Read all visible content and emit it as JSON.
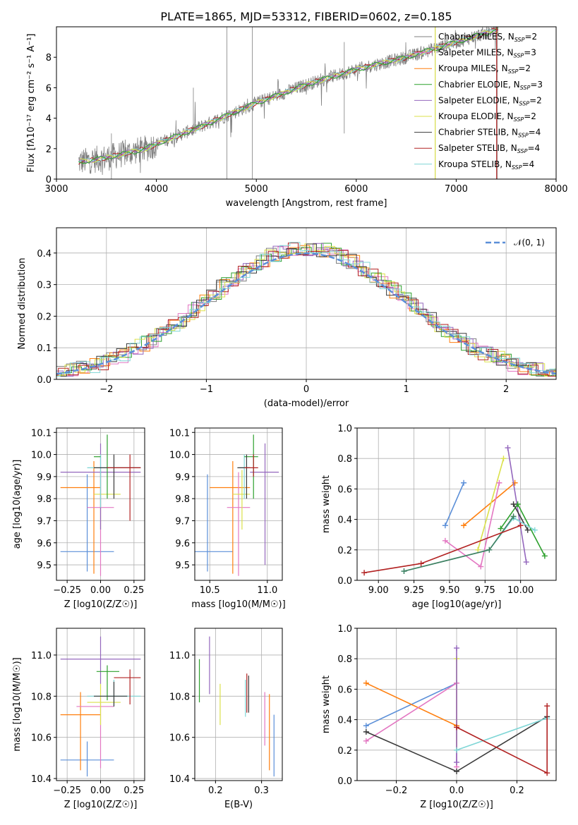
{
  "title": "PLATE=1865, MJD=53312, FIBERID=0602, z=0.185",
  "colors": {
    "Chabrier MILES": "#7f7f7f",
    "Salpeter MILES": "#e377c2",
    "Kroupa MILES": "#ff7f0e",
    "Chabrier ELODIE": "#2ca02c",
    "Salpeter ELODIE": "#9467bd",
    "Kroupa ELODIE": "#dbe14a",
    "Chabrier STELIB": "#3a3a3a",
    "Salpeter STELIB": "#b22222",
    "Kroupa STELIB": "#7fd6d6",
    "blue": "#5b8fd8",
    "darkgreen": "#3f7f5f"
  },
  "chart_data": [
    {
      "id": "spectrum",
      "type": "line",
      "xlabel": "wavelength [Angstrom, rest frame]",
      "ylabel": "Flux [f$_\\lambda$10$^{-17}$ erg cm$^{-2}$ s$^{-1}$ A$^{-1}$]",
      "xlim": [
        3000,
        8000
      ],
      "ylim": [
        0,
        10
      ],
      "xticks": [
        3000,
        4000,
        5000,
        6000,
        7000,
        8000
      ],
      "yticks": [
        0,
        2,
        4,
        6,
        8
      ],
      "legend": [
        {
          "label": "Chabrier MILES, N",
          "sub": "SSP",
          "suffix": "=2",
          "color": "#7f7f7f"
        },
        {
          "label": "Salpeter MILES, N",
          "sub": "SSP",
          "suffix": "=3",
          "color": "#e377c2"
        },
        {
          "label": "Kroupa MILES, N",
          "sub": "SSP",
          "suffix": "=2",
          "color": "#ff7f0e"
        },
        {
          "label": "Chabrier ELODIE, N",
          "sub": "SSP",
          "suffix": "=3",
          "color": "#2ca02c"
        },
        {
          "label": "Salpeter ELODIE, N",
          "sub": "SSP",
          "suffix": "=2",
          "color": "#9467bd"
        },
        {
          "label": "Kroupa ELODIE, N",
          "sub": "SSP",
          "suffix": "=2",
          "color": "#dbe14a"
        },
        {
          "label": "Chabrier STELIB, N",
          "sub": "SSP",
          "suffix": "=4",
          "color": "#3a3a3a"
        },
        {
          "label": "Salpeter STELIB, N",
          "sub": "SSP",
          "suffix": "=4",
          "color": "#b22222"
        },
        {
          "label": "Kroupa STELIB, N",
          "sub": "SSP",
          "suffix": "=4",
          "color": "#7fd6d6"
        }
      ],
      "legend_position": "top-right",
      "data_trend": {
        "x": [
          3200,
          3500,
          3900,
          4000,
          4500,
          5000,
          5500,
          6000,
          6500,
          7000,
          7400
        ],
        "y": [
          1.1,
          1.4,
          2.0,
          2.3,
          3.6,
          5.0,
          6.2,
          7.2,
          8.0,
          9.0,
          9.8
        ]
      },
      "grid": false
    },
    {
      "id": "residuals",
      "type": "step",
      "xlabel": "(data-model)/error",
      "ylabel": "Normed distribution",
      "xlim": [
        -2.5,
        2.5
      ],
      "ylim": [
        0,
        0.48
      ],
      "xticks": [
        -2,
        -1,
        0,
        1,
        2
      ],
      "yticks": [
        0.0,
        0.1,
        0.2,
        0.3,
        0.4
      ],
      "legend": [
        {
          "label": "N(0, 1)",
          "color": "#5b8fd8",
          "style": "dashed"
        }
      ],
      "legend_position": "top-right",
      "grid": true
    },
    {
      "id": "Z_age",
      "type": "errorbar",
      "xlabel": "Z [log10(Z/Z☉)]",
      "ylabel": "age  [log10(age/yr)]",
      "xlim": [
        -0.33,
        0.33
      ],
      "ylim": [
        9.43,
        10.12
      ],
      "xticks": [
        -0.25,
        0.0,
        0.25
      ],
      "yticks": [
        9.5,
        9.6,
        9.7,
        9.8,
        9.9,
        10.0,
        10.1
      ],
      "grid": true
    },
    {
      "id": "mass_age",
      "type": "errorbar",
      "xlabel": "mass [log10(M/M☉)]",
      "xlim": [
        10.37,
        11.13
      ],
      "ylim": [
        9.43,
        10.12
      ],
      "xticks": [
        10.5,
        11.0
      ],
      "yticks": [
        9.5,
        9.6,
        9.7,
        9.8,
        9.9,
        10.0,
        10.1
      ],
      "grid": true
    },
    {
      "id": "age_weight",
      "type": "line",
      "xlabel": "age  [log10(age/yr)]",
      "ylabel": "mass weight",
      "xlim": [
        8.85,
        10.25
      ],
      "ylim": [
        0,
        1.0
      ],
      "xticks": [
        9.0,
        9.25,
        9.5,
        9.75,
        10.0
      ],
      "yticks": [
        0.0,
        0.2,
        0.4,
        0.6,
        0.8,
        1.0
      ],
      "grid": true,
      "series": [
        {
          "color": "#5b8fd8",
          "x": [
            9.47,
            9.6
          ],
          "y": [
            0.36,
            0.64
          ]
        },
        {
          "color": "#ff7f0e",
          "x": [
            9.6,
            9.96
          ],
          "y": [
            0.36,
            0.64
          ]
        },
        {
          "color": "#dbe14a",
          "x": [
            9.7,
            9.88
          ],
          "y": [
            0.2,
            0.8
          ]
        },
        {
          "color": "#e377c2",
          "x": [
            9.47,
            9.72,
            9.85
          ],
          "y": [
            0.26,
            0.09,
            0.64
          ]
        },
        {
          "color": "#9467bd",
          "x": [
            9.91,
            10.04
          ],
          "y": [
            0.87,
            0.12
          ]
        },
        {
          "color": "#2ca02c",
          "x": [
            9.86,
            9.98,
            10.17
          ],
          "y": [
            0.34,
            0.5,
            0.16
          ]
        },
        {
          "color": "#3a3a3a",
          "x": [
            9.95,
            10.05
          ],
          "y": [
            0.5,
            0.33
          ]
        },
        {
          "color": "#7fd6d6",
          "x": [
            9.18,
            9.78,
            9.95,
            10.1
          ],
          "y": [
            0.06,
            0.2,
            0.41,
            0.33
          ]
        },
        {
          "color": "#3f7f5f",
          "x": [
            9.18,
            9.78,
            9.95
          ],
          "y": [
            0.06,
            0.2,
            0.42
          ]
        },
        {
          "color": "#b22222",
          "x": [
            8.9,
            9.3,
            10.0
          ],
          "y": [
            0.05,
            0.11,
            0.36
          ]
        }
      ]
    },
    {
      "id": "Z_mass",
      "type": "errorbar",
      "xlabel": "Z [log10(Z/Z☉)]",
      "ylabel": "mass [log10(M/M☉)]",
      "xlim": [
        -0.33,
        0.33
      ],
      "ylim": [
        10.39,
        11.13
      ],
      "xticks": [
        -0.25,
        0.0,
        0.25
      ],
      "yticks": [
        10.4,
        10.6,
        10.8,
        11.0
      ],
      "grid": true
    },
    {
      "id": "ebv_mass",
      "type": "errorbar",
      "xlabel": "E(B-V)",
      "xlim": [
        0.155,
        0.345
      ],
      "ylim": [
        10.39,
        11.13
      ],
      "xticks": [
        0.2,
        0.3
      ],
      "yticks": [
        10.4,
        10.6,
        10.8,
        11.0
      ],
      "grid": true
    },
    {
      "id": "Z_weight",
      "type": "line",
      "xlabel": "Z [log10(Z/Z☉)]",
      "ylabel": "mass weight",
      "xlim": [
        -0.33,
        0.33
      ],
      "ylim": [
        0,
        1.0
      ],
      "xticks": [
        -0.2,
        0.0,
        0.2
      ],
      "yticks": [
        0.0,
        0.2,
        0.4,
        0.6,
        0.8,
        1.0
      ],
      "grid": true,
      "series": [
        {
          "color": "#5b8fd8",
          "x": [
            -0.3,
            0.0
          ],
          "y": [
            0.36,
            0.64
          ]
        },
        {
          "color": "#ff7f0e",
          "x": [
            -0.3,
            0.0
          ],
          "y": [
            0.64,
            0.36
          ]
        },
        {
          "color": "#e377c2",
          "x": [
            -0.3,
            0.0,
            0.0
          ],
          "y": [
            0.26,
            0.64,
            0.09
          ]
        },
        {
          "color": "#dbe14a",
          "x": [
            0.0,
            0.0
          ],
          "y": [
            0.2,
            0.8
          ]
        },
        {
          "color": "#9467bd",
          "x": [
            0.0,
            0.0
          ],
          "y": [
            0.87,
            0.12
          ]
        },
        {
          "color": "#3a3a3a",
          "x": [
            -0.3,
            0.0,
            0.3
          ],
          "y": [
            0.32,
            0.06,
            0.42
          ]
        },
        {
          "color": "#7fd6d6",
          "x": [
            0.0,
            0.3
          ],
          "y": [
            0.2,
            0.41
          ]
        },
        {
          "color": "#b22222",
          "x": [
            0.0,
            0.3,
            0.3
          ],
          "y": [
            0.35,
            0.05,
            0.49
          ]
        }
      ]
    }
  ]
}
